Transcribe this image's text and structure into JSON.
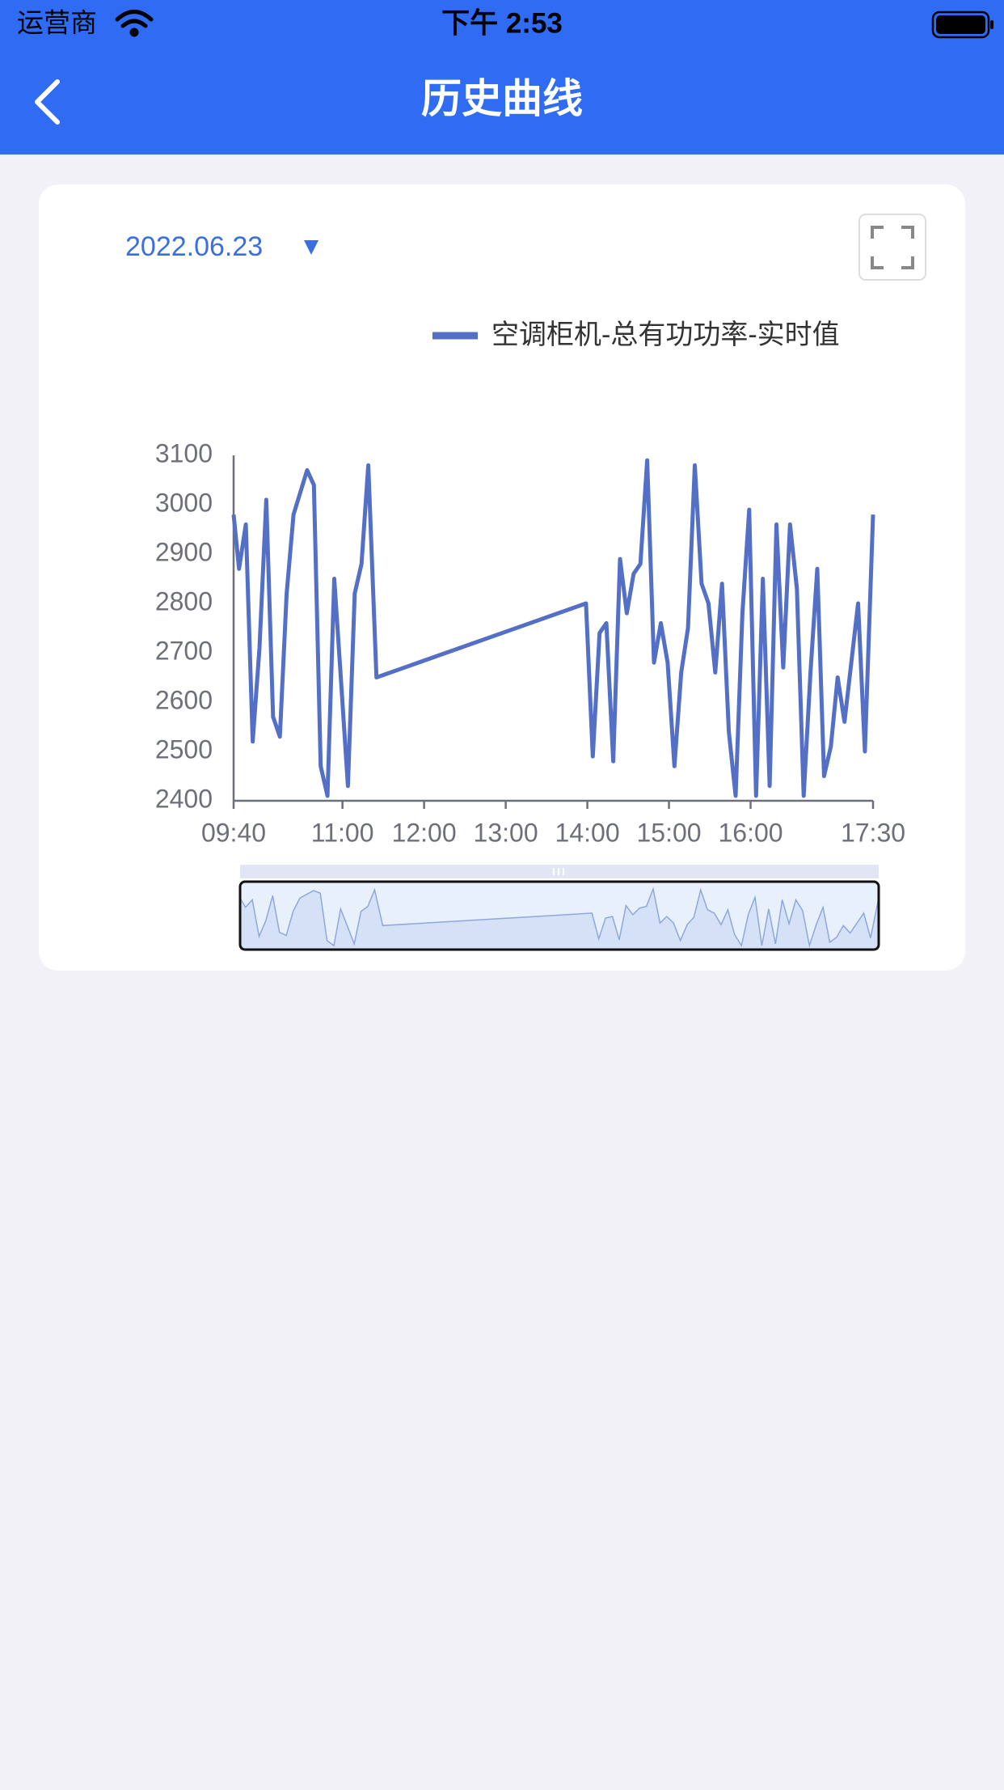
{
  "status_bar": {
    "carrier": "运营商",
    "time": "下午 2:53"
  },
  "header": {
    "title": "历史曲线"
  },
  "date_picker": {
    "date": "2022.06.23"
  },
  "chart_data": {
    "type": "line",
    "x": [
      "09:40",
      "09:44",
      "09:49",
      "09:54",
      "09:59",
      "10:04",
      "10:09",
      "10:14",
      "10:19",
      "10:24",
      "10:34",
      "10:39",
      "10:44",
      "10:49",
      "10:54",
      "10:59",
      "11:04",
      "11:09",
      "11:14",
      "11:19",
      "11:25",
      "13:59",
      "14:04",
      "14:09",
      "14:14",
      "14:19",
      "14:24",
      "14:29",
      "14:34",
      "14:39",
      "14:44",
      "14:49",
      "14:54",
      "14:59",
      "15:04",
      "15:09",
      "15:14",
      "15:19",
      "15:24",
      "15:29",
      "15:34",
      "15:39",
      "15:44",
      "15:49",
      "15:54",
      "15:59",
      "16:04",
      "16:09",
      "16:14",
      "16:19",
      "16:24",
      "16:29",
      "16:34",
      "16:39",
      "16:44",
      "16:49",
      "16:54",
      "16:59",
      "17:04",
      "17:09",
      "17:14",
      "17:19",
      "17:24",
      "17:30"
    ],
    "series": [
      {
        "name": "空调柜机-总有功功率-实时值",
        "color": "#5470c6",
        "values": [
          2980,
          2870,
          2960,
          2520,
          2710,
          3010,
          2570,
          2530,
          2820,
          2980,
          3070,
          3040,
          2470,
          2410,
          2850,
          2640,
          2430,
          2820,
          2880,
          3080,
          2650,
          2800,
          2490,
          2740,
          2760,
          2480,
          2890,
          2780,
          2860,
          2880,
          3090,
          2680,
          2760,
          2680,
          2470,
          2660,
          2750,
          3080,
          2840,
          2800,
          2660,
          2840,
          2540,
          2410,
          2780,
          2990,
          2410,
          2850,
          2430,
          2960,
          2670,
          2960,
          2830,
          2410,
          2660,
          2870,
          2450,
          2510,
          2650,
          2560,
          2680,
          2800,
          2500,
          2980
        ]
      }
    ],
    "xlim": [
      "09:40",
      "17:30"
    ],
    "xticks": [
      "09:40",
      "11:00",
      "12:00",
      "13:00",
      "14:00",
      "15:00",
      "16:00",
      "17:30"
    ],
    "ylim": [
      2400,
      3100
    ],
    "yticks": [
      2400,
      2500,
      2600,
      2700,
      2800,
      2900,
      3000,
      3100
    ]
  }
}
